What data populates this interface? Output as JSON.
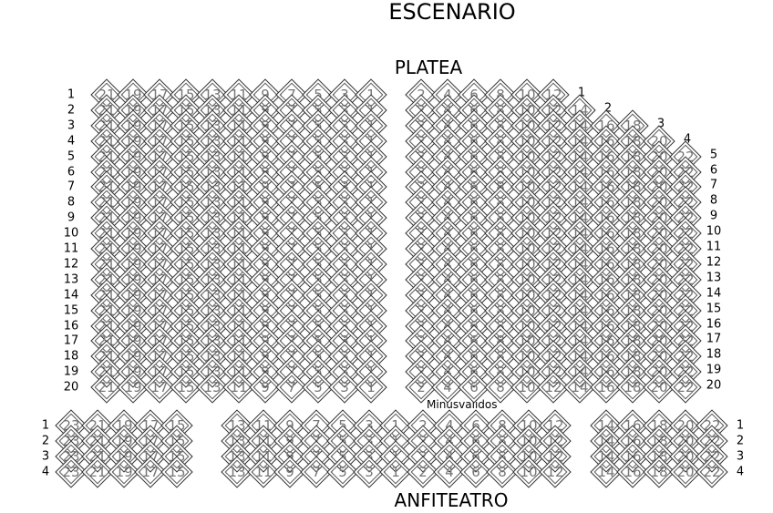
{
  "stage_label": "ESCENARIO",
  "platea": {
    "title": "PLATEA",
    "left_seats": [
      21,
      19,
      17,
      15,
      13,
      11,
      9,
      7,
      5,
      3,
      1
    ],
    "rows": [
      {
        "label": "1",
        "right_seats": [
          2,
          4,
          6,
          8,
          10,
          12
        ]
      },
      {
        "label": "2",
        "right_seats": [
          2,
          4,
          6,
          8,
          10,
          12,
          14
        ]
      },
      {
        "label": "3",
        "right_seats": [
          2,
          4,
          6,
          8,
          10,
          12,
          14,
          16,
          18
        ]
      },
      {
        "label": "4",
        "right_seats": [
          2,
          4,
          6,
          8,
          10,
          12,
          14,
          16,
          18,
          20
        ]
      },
      {
        "label": "5",
        "right_seats": [
          2,
          4,
          6,
          8,
          10,
          12,
          14,
          16,
          18,
          20,
          22
        ]
      },
      {
        "label": "6",
        "right_seats": [
          2,
          4,
          6,
          8,
          10,
          12,
          14,
          16,
          18,
          20,
          22
        ]
      },
      {
        "label": "7",
        "right_seats": [
          2,
          4,
          6,
          8,
          10,
          12,
          14,
          16,
          18,
          20,
          22
        ]
      },
      {
        "label": "8",
        "right_seats": [
          2,
          4,
          6,
          8,
          10,
          12,
          14,
          16,
          18,
          20,
          22
        ]
      },
      {
        "label": "9",
        "right_seats": [
          2,
          4,
          6,
          8,
          10,
          12,
          14,
          16,
          18,
          20,
          22
        ]
      },
      {
        "label": "10",
        "right_seats": [
          2,
          4,
          6,
          8,
          10,
          12,
          14,
          16,
          18,
          20,
          22
        ]
      },
      {
        "label": "11",
        "right_seats": [
          2,
          4,
          6,
          8,
          10,
          12,
          14,
          16,
          18,
          20,
          22
        ]
      },
      {
        "label": "12",
        "right_seats": [
          2,
          4,
          6,
          8,
          10,
          12,
          14,
          16,
          18,
          20,
          22
        ]
      },
      {
        "label": "13",
        "right_seats": [
          2,
          4,
          6,
          8,
          10,
          12,
          14,
          16,
          18,
          20,
          22
        ]
      },
      {
        "label": "14",
        "right_seats": [
          2,
          4,
          6,
          8,
          10,
          12,
          14,
          16,
          18,
          20,
          22
        ]
      },
      {
        "label": "15",
        "right_seats": [
          2,
          4,
          6,
          8,
          10,
          12,
          14,
          16,
          18,
          20,
          22
        ]
      },
      {
        "label": "16",
        "right_seats": [
          2,
          4,
          6,
          8,
          10,
          12,
          14,
          16,
          18,
          20,
          22
        ]
      },
      {
        "label": "17",
        "right_seats": [
          2,
          4,
          6,
          8,
          10,
          12,
          14,
          16,
          18,
          20,
          22
        ]
      },
      {
        "label": "18",
        "right_seats": [
          2,
          4,
          6,
          8,
          10,
          12,
          14,
          16,
          18,
          20,
          22
        ]
      },
      {
        "label": "19",
        "right_seats": [
          2,
          4,
          6,
          8,
          10,
          12,
          14,
          16,
          18,
          20,
          22
        ]
      },
      {
        "label": "20",
        "right_seats": [
          2,
          4,
          6,
          8,
          10,
          12,
          14,
          16,
          18,
          20,
          22
        ]
      }
    ],
    "accessible_label": "Minusvalidos"
  },
  "anfiteatro": {
    "title": "ANFITEATRO",
    "rows": [
      "1",
      "2",
      "3",
      "4"
    ],
    "left_block": [
      23,
      21,
      19,
      17,
      15
    ],
    "center_odd": [
      13,
      11,
      9,
      7,
      5,
      3,
      1
    ],
    "center_even": [
      2,
      4,
      6,
      8,
      10,
      12
    ],
    "right_block": [
      14,
      16,
      18,
      20,
      22
    ]
  }
}
